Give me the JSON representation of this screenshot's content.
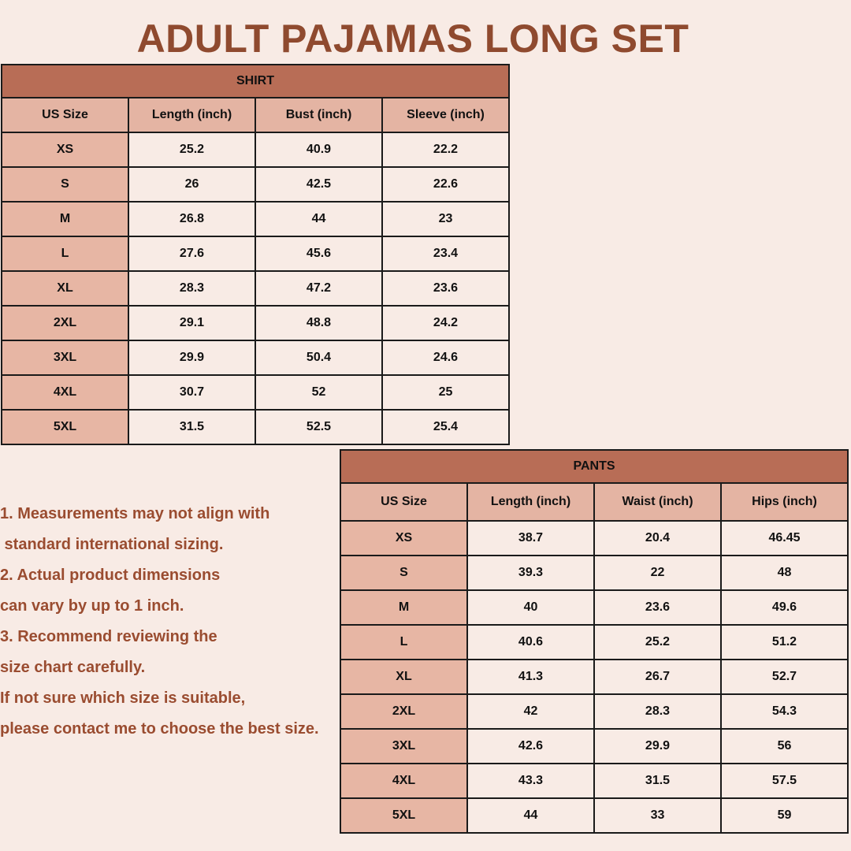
{
  "title": "ADULT PAJAMAS LONG SET",
  "colors": {
    "title": "#8f4a2f",
    "caption_bg": "#b86d56",
    "header_bg": "#e4b4a3",
    "size_col_bg": "#e7b6a4",
    "background": "#f8ebe5"
  },
  "shirt": {
    "caption": "SHIRT",
    "headers": [
      "US Size",
      "Length (inch)",
      "Bust (inch)",
      "Sleeve (inch)"
    ],
    "rows": [
      [
        "XS",
        "25.2",
        "40.9",
        "22.2"
      ],
      [
        "S",
        "26",
        "42.5",
        "22.6"
      ],
      [
        "M",
        "26.8",
        "44",
        "23"
      ],
      [
        "L",
        "27.6",
        "45.6",
        "23.4"
      ],
      [
        "XL",
        "28.3",
        "47.2",
        "23.6"
      ],
      [
        "2XL",
        "29.1",
        "48.8",
        "24.2"
      ],
      [
        "3XL",
        "29.9",
        "50.4",
        "24.6"
      ],
      [
        "4XL",
        "30.7",
        "52",
        "25"
      ],
      [
        "5XL",
        "31.5",
        "52.5",
        "25.4"
      ]
    ]
  },
  "pants": {
    "caption": "PANTS",
    "headers": [
      "US Size",
      "Length (inch)",
      "Waist (inch)",
      "Hips (inch)"
    ],
    "rows": [
      [
        "XS",
        "38.7",
        "20.4",
        "46.45"
      ],
      [
        "S",
        "39.3",
        "22",
        "48"
      ],
      [
        "M",
        "40",
        "23.6",
        "49.6"
      ],
      [
        "L",
        "40.6",
        "25.2",
        "51.2"
      ],
      [
        "XL",
        "41.3",
        "26.7",
        "52.7"
      ],
      [
        "2XL",
        "42",
        "28.3",
        "54.3"
      ],
      [
        "3XL",
        "42.6",
        "29.9",
        "56"
      ],
      [
        "4XL",
        "43.3",
        "31.5",
        "57.5"
      ],
      [
        "5XL",
        "44",
        "33",
        "59"
      ]
    ]
  },
  "notes": [
    "1. Measurements may not align with",
    " standard international sizing.",
    "2. Actual product dimensions",
    "can vary by up to 1 inch.",
    "3. Recommend reviewing the",
    "size chart carefully.",
    "If not sure which size is suitable,",
    "please contact me to choose the best size."
  ]
}
